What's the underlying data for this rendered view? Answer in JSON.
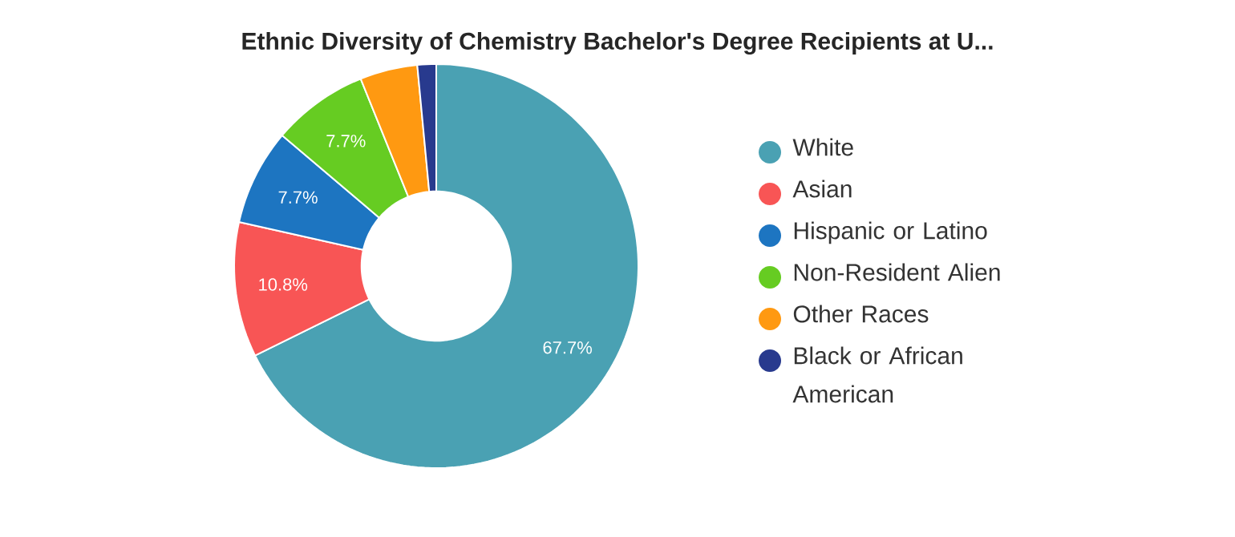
{
  "chart_data": {
    "type": "donut",
    "title": "Ethnic Diversity of Chemistry Bachelor's Degree Recipients at U...",
    "categories": [
      "White",
      "Asian",
      "Hispanic or Latino",
      "Non-Resident Alien",
      "Other Races",
      "Black or African American"
    ],
    "values": [
      67.7,
      10.8,
      7.7,
      7.7,
      4.6,
      1.5
    ],
    "colors": [
      "#4aa1b3",
      "#f85555",
      "#1d75c1",
      "#66cc22",
      "#ff9911",
      "#283a8e"
    ],
    "value_labels": [
      "67.7%",
      "10.8%",
      "7.7%",
      "7.7%",
      null,
      null
    ],
    "legend": "right"
  }
}
